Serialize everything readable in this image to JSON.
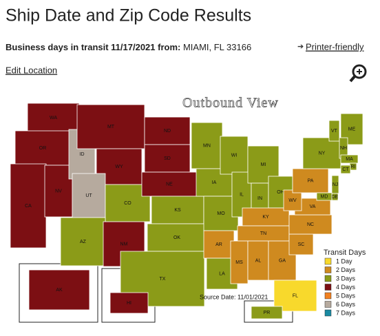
{
  "header": {
    "title": "Ship Date and Zip Code Results",
    "transit_prefix": "Business days in transit 11/17/2021 from:",
    "origin": "MIAMI, FL 33166",
    "printer": "Printer-friendly",
    "edit": "Edit Location"
  },
  "map": {
    "title": "Outbound View",
    "source": "Source Date: 11/01/2021",
    "legend": {
      "title": "Transit Days",
      "items": [
        {
          "label": "1 Day",
          "color": "#f8d92c"
        },
        {
          "label": "2 Days",
          "color": "#cf8a1f"
        },
        {
          "label": "3 Days",
          "color": "#8b9b18"
        },
        {
          "label": "4 Days",
          "color": "#7c0f13"
        },
        {
          "label": "5 Days",
          "color": "#f1801f"
        },
        {
          "label": "6 Days",
          "color": "#b6aa9e"
        },
        {
          "label": "7 Days",
          "color": "#1a8aa2"
        }
      ]
    },
    "states": [
      {
        "label": "WA",
        "color": "#7c0f13"
      },
      {
        "label": "OR",
        "color": "#7c0f13"
      },
      {
        "label": "CA",
        "color": "#7c0f13"
      },
      {
        "label": "NV",
        "color": "#7c0f13"
      },
      {
        "label": "ID",
        "color": "#b6aa9e"
      },
      {
        "label": "MT",
        "color": "#7c0f13"
      },
      {
        "label": "WY",
        "color": "#7c0f13"
      },
      {
        "label": "UT",
        "color": "#b6aa9e"
      },
      {
        "label": "CO",
        "color": "#8b9b18"
      },
      {
        "label": "AZ",
        "color": "#8b9b18"
      },
      {
        "label": "NM",
        "color": "#7c0f13"
      },
      {
        "label": "ND",
        "color": "#7c0f13"
      },
      {
        "label": "SD",
        "color": "#7c0f13"
      },
      {
        "label": "NE",
        "color": "#7c0f13"
      },
      {
        "label": "KS",
        "color": "#8b9b18"
      },
      {
        "label": "OK",
        "color": "#8b9b18"
      },
      {
        "label": "TX",
        "color": "#8b9b18"
      },
      {
        "label": "MN",
        "color": "#8b9b18"
      },
      {
        "label": "IA",
        "color": "#8b9b18"
      },
      {
        "label": "MO",
        "color": "#8b9b18"
      },
      {
        "label": "AR",
        "color": "#cf8a1f"
      },
      {
        "label": "LA",
        "color": "#8b9b18"
      },
      {
        "label": "WI",
        "color": "#8b9b18"
      },
      {
        "label": "IL",
        "color": "#8b9b18"
      },
      {
        "label": "MI",
        "color": "#8b9b18"
      },
      {
        "label": "IN",
        "color": "#8b9b18"
      },
      {
        "label": "OH",
        "color": "#8b9b18"
      },
      {
        "label": "KY",
        "color": "#cf8a1f"
      },
      {
        "label": "TN",
        "color": "#cf8a1f"
      },
      {
        "label": "MS",
        "color": "#cf8a1f"
      },
      {
        "label": "AL",
        "color": "#cf8a1f"
      },
      {
        "label": "GA",
        "color": "#cf8a1f"
      },
      {
        "label": "FL",
        "color": "#f8d92c"
      },
      {
        "label": "SC",
        "color": "#cf8a1f"
      },
      {
        "label": "NC",
        "color": "#cf8a1f"
      },
      {
        "label": "VA",
        "color": "#cf8a1f"
      },
      {
        "label": "WV",
        "color": "#cf8a1f"
      },
      {
        "label": "PA",
        "color": "#cf8a1f"
      },
      {
        "label": "NY",
        "color": "#8b9b18"
      },
      {
        "label": "VT",
        "color": "#8b9b18"
      },
      {
        "label": "ME",
        "color": "#8b9b18"
      },
      {
        "label": "NH",
        "color": "#8b9b18"
      },
      {
        "label": "MA",
        "color": "#8b9b18"
      },
      {
        "label": "RI",
        "color": "#8b9b18"
      },
      {
        "label": "CT",
        "color": "#8b9b18"
      },
      {
        "label": "NJ",
        "color": "#8b9b18"
      },
      {
        "label": "DE",
        "color": "#8b9b18"
      },
      {
        "label": "MD",
        "color": "#8b9b18"
      },
      {
        "label": "AK",
        "color": "#7c0f13"
      },
      {
        "label": "HI",
        "color": "#7c0f13"
      },
      {
        "label": "PR",
        "color": "#8b9b18"
      }
    ]
  }
}
